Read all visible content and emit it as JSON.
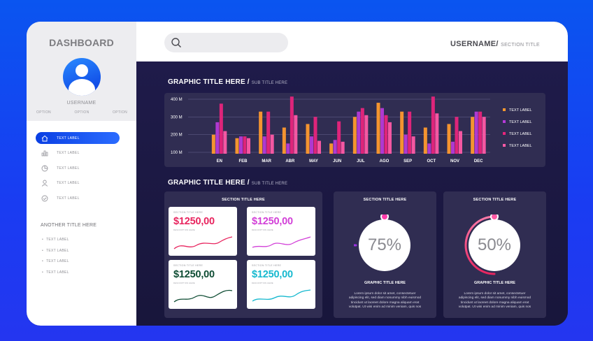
{
  "sidebar": {
    "brand": "DASHBOARD",
    "username": "USERNAME",
    "options": [
      "OPTION",
      "OPTION",
      "OPTION"
    ],
    "nav": [
      {
        "label": "TEXT LABEL",
        "icon": "home-icon",
        "active": true
      },
      {
        "label": "TEXT LABEL",
        "icon": "bar-chart-icon",
        "active": false
      },
      {
        "label": "TEXT LABEL",
        "icon": "pie-chart-icon",
        "active": false
      },
      {
        "label": "TEXT LABEL",
        "icon": "user-icon",
        "active": false
      },
      {
        "label": "TEXT LABEL",
        "icon": "check-circle-icon",
        "active": false
      }
    ],
    "another_title": "ANOTHER TITLE HERE",
    "list": [
      "TEXT LABEL",
      "TEXT LABEL",
      "TEXT LABEL",
      "TEXT LABEL"
    ]
  },
  "header": {
    "username": "USERNAME/",
    "section_title": "SECTION TITLE",
    "search_icon": "search-icon"
  },
  "graphic1": {
    "title": "GRAPHIC TITLE HERE /",
    "subtitle": "SUB TITLE HERE"
  },
  "graphic2": {
    "title": "GRAPHIC TITLE HERE /",
    "subtitle": "SUB TITLE HERE"
  },
  "chart_data": {
    "type": "bar",
    "categories": [
      "EN",
      "FEB",
      "MAR",
      "ABR",
      "MAY",
      "JUN",
      "JUL",
      "AGO",
      "SEP",
      "OCT",
      "NOV",
      "DEC"
    ],
    "yticks": [
      "400 M",
      "300 M",
      "200 M",
      "100 M"
    ],
    "ylim": [
      100,
      400
    ],
    "series": [
      {
        "name": "TEXT LABEL",
        "color": "#ff9a2e",
        "values": [
          200,
          180,
          330,
          240,
          260,
          150,
          300,
          380,
          330,
          240,
          260,
          300
        ]
      },
      {
        "name": "TEXT LABEL",
        "color": "#b63ad8",
        "values": [
          270,
          190,
          190,
          150,
          190,
          170,
          330,
          350,
          200,
          150,
          160,
          330
        ]
      },
      {
        "name": "TEXT LABEL",
        "color": "#e8247c",
        "values": [
          375,
          190,
          330,
          415,
          300,
          275,
          350,
          310,
          330,
          415,
          300,
          330
        ]
      },
      {
        "name": "TEXT LABEL",
        "color": "#ff5aa6",
        "values": [
          220,
          180,
          200,
          310,
          165,
          160,
          310,
          270,
          190,
          320,
          220,
          300
        ]
      }
    ]
  },
  "cards_section": {
    "title": "SECTION TITLE HERE",
    "cards": [
      {
        "title": "SECTION TITLE HERE",
        "value": "$1250,00",
        "desc": "DESCRIPTION HERE",
        "color": "#e8255f"
      },
      {
        "title": "SECTION TITLE HERE",
        "value": "$1250,00",
        "desc": "DESCRIPTION HERE",
        "color": "#d240d8"
      },
      {
        "title": "SECTION TITLE HERE",
        "value": "$1250,00",
        "desc": "DESCRIPTION HERE",
        "color": "#0f4d34"
      },
      {
        "title": "SECTION TITLE HERE",
        "value": "$1250,00",
        "desc": "DESCRIPTION HERE",
        "color": "#17b9cf"
      }
    ]
  },
  "rings": [
    {
      "section_title": "SECTION TITLE HERE",
      "value": "75%",
      "progress": 0.75,
      "label": "GRAPHIC TITLE HERE",
      "text": "Lorem ipsum dolor sit amet, consectetuer adipiscing elit, sed diam nonummy nibh euismod tincidunt ut laoreet dolore magna aliquam erat volutpat. Ut wisi enim ad minim veniam, quis nos"
    },
    {
      "section_title": "SECTION TITLE HERE",
      "value": "50%",
      "progress": 0.5,
      "label": "GRAPHIC TITLE HERE",
      "text": "Lorem ipsum dolor sit amet, consectetuer adipiscing elit, sed diam nonummy nibh euismod tincidunt ut laoreet dolore magna aliquam erat volutpat. Ut wisi enim ad minim veniam, quis nos"
    }
  ]
}
